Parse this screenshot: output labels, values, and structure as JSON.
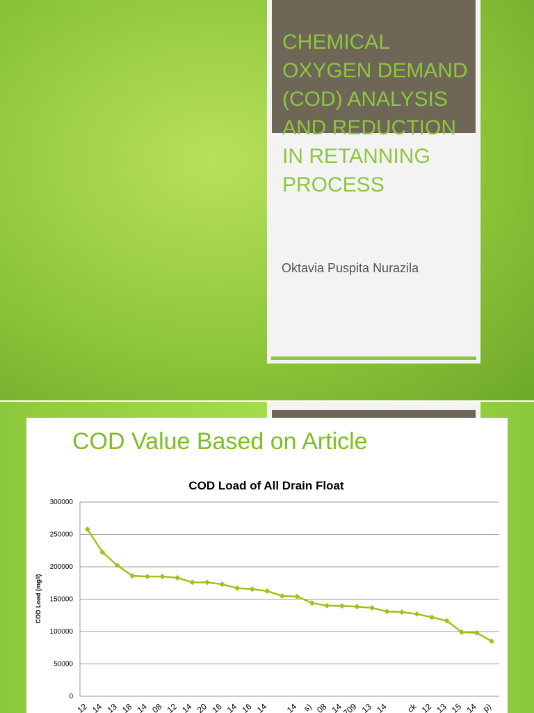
{
  "slide1": {
    "title": "CHEMICAL OXYGEN DEMAND (COD) ANALYSIS AND REDUCTION IN RETANNING PROCESS",
    "author": "Oktavia Puspita Nurazila"
  },
  "slide2": {
    "heading": "COD Value Based on Article"
  },
  "chart_data": {
    "type": "line",
    "title": "COD Load of All Drain Float",
    "y_label": "COD Load (mg/l)",
    "categories": [
      "12",
      "14",
      "13",
      "18",
      "14",
      "08",
      "12",
      "14",
      "20",
      "16",
      "14",
      "16",
      "14",
      null,
      "14",
      "s)",
      "08",
      "14",
      "709",
      "13",
      "14",
      null,
      "ck",
      "12",
      "13",
      "15",
      "14",
      "p)"
    ],
    "series": [
      {
        "name": "COD Load",
        "color": "#9bc31c",
        "values": [
          258000,
          222500,
          202000,
          186000,
          185000,
          185000,
          183000,
          176000,
          176000,
          173000,
          167000,
          165500,
          162500,
          155000,
          154000,
          144000,
          140000,
          139500,
          138500,
          136500,
          131000,
          130000,
          127000,
          122000,
          116500,
          99000,
          98000,
          85000
        ]
      }
    ],
    "ylim": [
      0,
      300000
    ],
    "yticks": [
      0,
      50000,
      100000,
      150000,
      200000,
      250000,
      300000
    ],
    "grid": true
  }
}
